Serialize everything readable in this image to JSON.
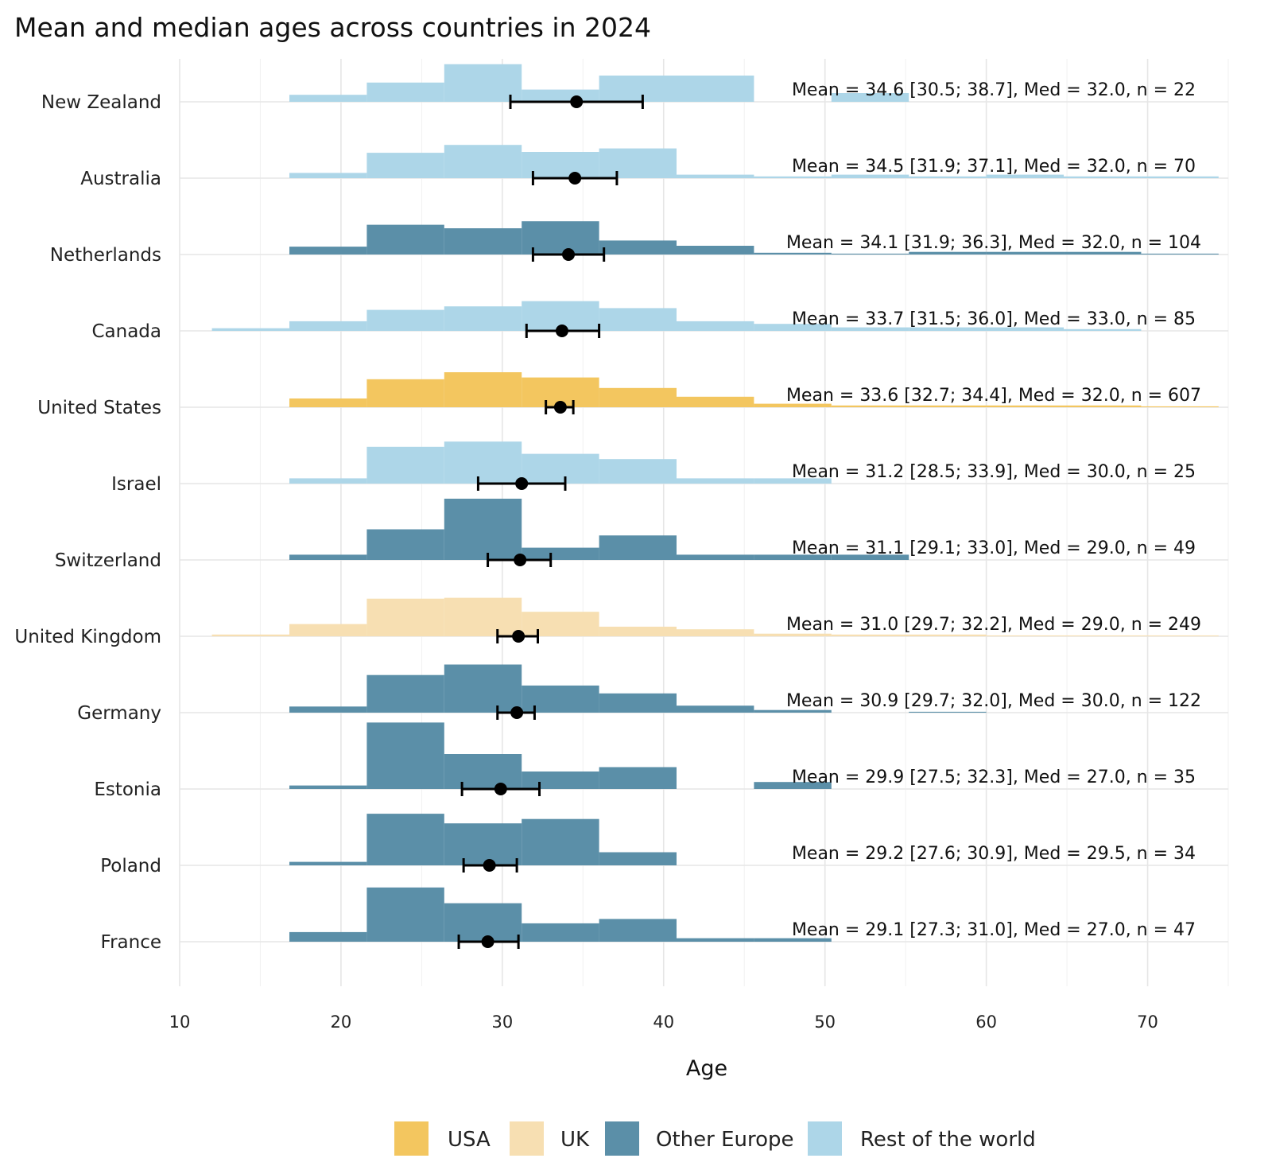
{
  "chart_data": {
    "type": "histogram-with-errorbars",
    "title": "Mean and median ages across countries in 2024",
    "xlabel": "Age",
    "ylabel": "",
    "xlim": [
      10,
      75
    ],
    "xticks": [
      10,
      20,
      30,
      40,
      50,
      60,
      70
    ],
    "grid": true,
    "bin_edges": [
      12,
      16.8,
      21.6,
      26.4,
      31.2,
      36,
      40.8,
      45.6,
      50.4,
      55.2,
      60,
      64.8,
      69.6,
      74.4
    ],
    "groups": [
      {
        "key": "usa",
        "label": "USA",
        "color": "#F3C65F"
      },
      {
        "key": "uk",
        "label": "UK",
        "color": "#F7DFB2"
      },
      {
        "key": "europe",
        "label": "Other Europe",
        "color": "#5B8FA8"
      },
      {
        "key": "row",
        "label": "Rest of the world",
        "color": "#ADD6E8"
      }
    ],
    "countries": [
      {
        "name": "New Zealand",
        "group": "row",
        "mean": 34.6,
        "ci_low": 30.5,
        "ci_high": 38.7,
        "median": 32.0,
        "n": 22,
        "annotation": "Mean = 34.6 [30.5; 38.7], Med = 32.0, n = 22",
        "density": [
          0,
          0.08,
          0.22,
          0.43,
          0.14,
          0.3,
          0.3,
          0,
          0.1,
          0,
          0,
          0,
          0
        ]
      },
      {
        "name": "Australia",
        "group": "row",
        "mean": 34.5,
        "ci_low": 31.9,
        "ci_high": 37.1,
        "median": 32.0,
        "n": 70,
        "annotation": "Mean = 34.5 [31.9; 37.1], Med = 32.0, n = 70",
        "density": [
          0,
          0.06,
          0.29,
          0.38,
          0.3,
          0.34,
          0.04,
          0.02,
          0.04,
          0.02,
          0.04,
          0.02,
          0.02
        ]
      },
      {
        "name": "Netherlands",
        "group": "europe",
        "mean": 34.1,
        "ci_low": 31.9,
        "ci_high": 36.3,
        "median": 32.0,
        "n": 104,
        "annotation": "Mean = 34.1 [31.9; 36.3], Med = 32.0, n = 104",
        "density": [
          0,
          0.09,
          0.34,
          0.3,
          0.38,
          0.16,
          0.1,
          0.02,
          0.01,
          0.03,
          0.03,
          0.03,
          0.01
        ]
      },
      {
        "name": "Canada",
        "group": "row",
        "mean": 33.7,
        "ci_low": 31.5,
        "ci_high": 36.0,
        "median": 33.0,
        "n": 85,
        "annotation": "Mean = 33.7 [31.5; 36.0], Med = 33.0, n = 85",
        "density": [
          0.03,
          0.11,
          0.24,
          0.28,
          0.34,
          0.26,
          0.11,
          0.08,
          0.04,
          0.04,
          0.04,
          0.02,
          0
        ]
      },
      {
        "name": "United States",
        "group": "usa",
        "mean": 33.6,
        "ci_low": 32.7,
        "ci_high": 34.4,
        "median": 32.0,
        "n": 607,
        "annotation": "Mean = 33.6 [32.7; 34.4], Med = 32.0, n = 607",
        "density": [
          0,
          0.1,
          0.32,
          0.4,
          0.34,
          0.22,
          0.12,
          0.04,
          0.02,
          0.02,
          0.02,
          0.02,
          0.01
        ]
      },
      {
        "name": "Israel",
        "group": "row",
        "mean": 31.2,
        "ci_low": 28.5,
        "ci_high": 33.9,
        "median": 30.0,
        "n": 25,
        "annotation": "Mean = 31.2 [28.5; 33.9], Med = 30.0, n = 25",
        "density": [
          0,
          0.06,
          0.42,
          0.48,
          0.34,
          0.28,
          0.06,
          0.06,
          0,
          0,
          0,
          0,
          0
        ]
      },
      {
        "name": "Switzerland",
        "group": "europe",
        "mean": 31.1,
        "ci_low": 29.1,
        "ci_high": 33.0,
        "median": 29.0,
        "n": 49,
        "annotation": "Mean = 31.1 [29.1; 33.0], Med = 29.0, n = 49",
        "density": [
          0,
          0.06,
          0.35,
          0.7,
          0.14,
          0.28,
          0.06,
          0.06,
          0.06,
          0,
          0,
          0,
          0
        ]
      },
      {
        "name": "United Kingdom",
        "group": "uk",
        "mean": 31.0,
        "ci_low": 29.7,
        "ci_high": 32.2,
        "median": 29.0,
        "n": 249,
        "annotation": "Mean = 31.0 [29.7; 32.2], Med = 29.0, n = 249",
        "density": [
          0.02,
          0.14,
          0.43,
          0.44,
          0.28,
          0.11,
          0.08,
          0.03,
          0.02,
          0.02,
          0.01,
          0.01,
          0.01
        ]
      },
      {
        "name": "Germany",
        "group": "europe",
        "mean": 30.9,
        "ci_low": 29.7,
        "ci_high": 32.0,
        "median": 30.0,
        "n": 122,
        "annotation": "Mean = 30.9 [29.7; 32.0], Med = 30.0, n = 122",
        "density": [
          0,
          0.07,
          0.43,
          0.55,
          0.31,
          0.22,
          0.08,
          0.03,
          0,
          0.01,
          0,
          0,
          0
        ]
      },
      {
        "name": "Estonia",
        "group": "europe",
        "mean": 29.9,
        "ci_low": 27.5,
        "ci_high": 32.3,
        "median": 27.0,
        "n": 35,
        "annotation": "Mean = 29.9 [27.5; 32.3], Med = 27.0, n = 35",
        "density": [
          0,
          0.04,
          0.76,
          0.4,
          0.2,
          0.25,
          0,
          0.08,
          0,
          0,
          0,
          0,
          0
        ]
      },
      {
        "name": "Poland",
        "group": "europe",
        "mean": 29.2,
        "ci_low": 27.6,
        "ci_high": 30.9,
        "median": 29.5,
        "n": 34,
        "annotation": "Mean = 29.2 [27.6; 30.9], Med = 29.5, n = 34",
        "density": [
          0,
          0.04,
          0.59,
          0.48,
          0.53,
          0.15,
          0,
          0,
          0,
          0,
          0,
          0,
          0
        ]
      },
      {
        "name": "France",
        "group": "europe",
        "mean": 29.1,
        "ci_low": 27.3,
        "ci_high": 31.0,
        "median": 27.0,
        "n": 47,
        "annotation": "Mean = 29.1 [27.3; 31.0], Med = 27.0, n = 47",
        "density": [
          0,
          0.11,
          0.62,
          0.44,
          0.21,
          0.26,
          0.04,
          0.04,
          0,
          0,
          0,
          0,
          0
        ]
      }
    ]
  }
}
